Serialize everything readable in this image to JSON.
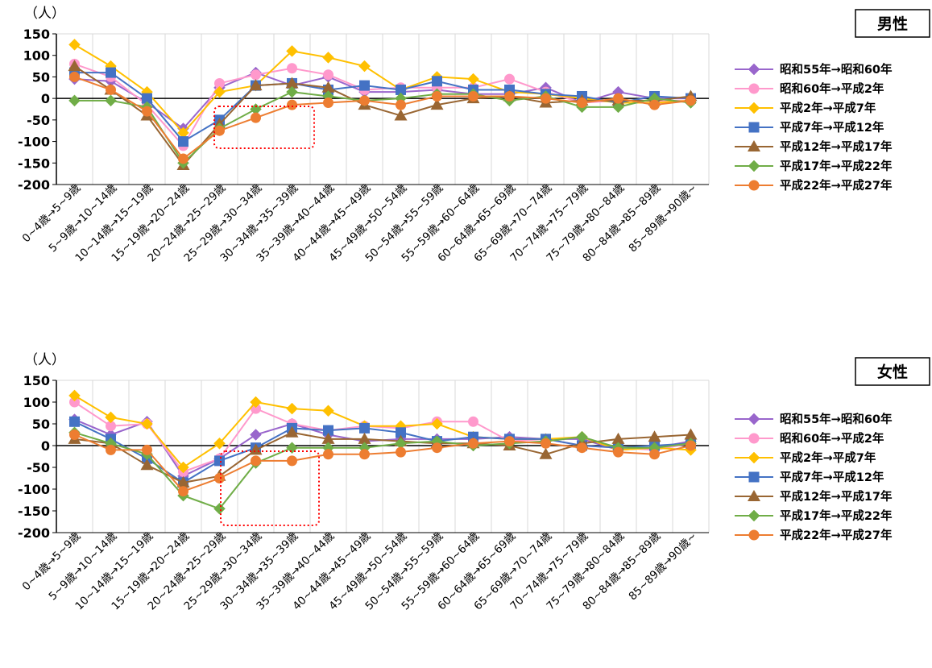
{
  "legend_colors": [
    "#9966cc",
    "#ff99cc",
    "#ffc000",
    "#4472c4",
    "#996633",
    "#70ad47",
    "#ed7d31"
  ],
  "legend_markers": [
    "diamond",
    "circle",
    "diamond",
    "square",
    "triangle",
    "diamond",
    "circle"
  ],
  "chart_data": [
    {
      "type": "line",
      "title": "男性",
      "unit_label": "（人）",
      "ylim": [
        -200,
        150
      ],
      "yticks": [
        150,
        100,
        50,
        0,
        -50,
        -100,
        -150,
        -200
      ],
      "grid": "vertical",
      "legend_position": "right",
      "highlight": "dotted red box around 25~29歳→30~34歳 and 30~34歳→35~39歳",
      "categories": [
        "0~4歳→5~9歳",
        "5~9歳→10~14歳",
        "10~14歳→15~19歳",
        "15~19歳→20~24歳",
        "20~24歳→25~29歳",
        "25~29歳→30~34歳",
        "30~34歳→35~39歳",
        "35~39歳→40~44歳",
        "40~44歳→45~49歳",
        "45~49歳→50~54歳",
        "50~54歳→55~59歳",
        "55~59歳→60~64歳",
        "60~64歳→65~69歳",
        "65~69歳→70~74歳",
        "70~74歳→75~79歳",
        "75~79歳→80~84歳",
        "80~84歳→85~89歳",
        "85~89歳→90歳~"
      ],
      "series": [
        {
          "name": "昭和55年→昭和60年",
          "values": [
            45,
            40,
            -10,
            -70,
            25,
            60,
            30,
            50,
            15,
            15,
            20,
            10,
            10,
            25,
            -10,
            15,
            0,
            0
          ]
        },
        {
          "name": "昭和60年→平成2年",
          "values": [
            80,
            50,
            -15,
            -110,
            35,
            55,
            70,
            55,
            20,
            25,
            25,
            25,
            45,
            15,
            -10,
            -5,
            -5,
            -5
          ]
        },
        {
          "name": "平成2年→平成7年",
          "values": [
            125,
            75,
            15,
            -80,
            15,
            30,
            110,
            95,
            75,
            20,
            50,
            45,
            15,
            10,
            0,
            -10,
            -10,
            -5
          ]
        },
        {
          "name": "平成7年→平成12年",
          "values": [
            60,
            60,
            0,
            -100,
            -50,
            30,
            35,
            20,
            30,
            20,
            40,
            20,
            20,
            10,
            5,
            -10,
            5,
            0
          ]
        },
        {
          "name": "平成12年→平成17年",
          "values": [
            75,
            20,
            -40,
            -155,
            -60,
            30,
            35,
            25,
            -15,
            -40,
            -15,
            0,
            5,
            -10,
            -5,
            -5,
            -5,
            5
          ]
        },
        {
          "name": "平成17年→平成22年",
          "values": [
            -5,
            -5,
            -20,
            -150,
            -70,
            -25,
            15,
            5,
            -5,
            0,
            10,
            10,
            -5,
            5,
            -20,
            -20,
            0,
            -10
          ]
        },
        {
          "name": "平成22年→平成27年",
          "values": [
            50,
            20,
            -30,
            -140,
            -75,
            -45,
            -15,
            -10,
            -5,
            -15,
            5,
            5,
            5,
            0,
            -10,
            0,
            -15,
            -5
          ]
        }
      ]
    },
    {
      "type": "line",
      "title": "女性",
      "unit_label": "（人）",
      "ylim": [
        -200,
        150
      ],
      "yticks": [
        150,
        100,
        50,
        0,
        -50,
        -100,
        -150,
        -200
      ],
      "grid": "vertical",
      "legend_position": "right",
      "highlight": "dotted red box around 25~29歳→30~34歳 and 30~34歳→35~39歳",
      "categories": [
        "0~4歳→5~9歳",
        "5~9歳→10~14歳",
        "10~14歳→15~19歳",
        "15~19歳→20~24歳",
        "20~24歳→25~29歳",
        "25~29歳→30~34歳",
        "30~34歳→35~39歳",
        "35~39歳→40~44歳",
        "40~44歳→45~49歳",
        "45~49歳→50~54歳",
        "50~54歳→55~59歳",
        "55~59歳→60~64歳",
        "60~64歳→65~69歳",
        "65~69歳→70~74歳",
        "70~74歳→75~79歳",
        "75~79歳→80~84歳",
        "80~84歳→85~89歳",
        "85~89歳→90歳~"
      ],
      "series": [
        {
          "name": "昭和55年→昭和60年",
          "values": [
            60,
            25,
            55,
            -70,
            -30,
            25,
            50,
            25,
            10,
            15,
            15,
            15,
            20,
            15,
            15,
            -10,
            -5,
            10
          ]
        },
        {
          "name": "昭和60年→平成2年",
          "values": [
            100,
            45,
            50,
            -60,
            -30,
            85,
            50,
            35,
            45,
            40,
            55,
            55,
            10,
            15,
            0,
            -5,
            -10,
            5
          ]
        },
        {
          "name": "平成2年→平成7年",
          "values": [
            115,
            65,
            50,
            -50,
            5,
            100,
            85,
            80,
            45,
            45,
            50,
            20,
            15,
            15,
            20,
            -10,
            -5,
            -10
          ]
        },
        {
          "name": "平成7年→平成12年",
          "values": [
            55,
            15,
            -30,
            -85,
            -35,
            -5,
            40,
            35,
            40,
            30,
            10,
            20,
            15,
            15,
            0,
            -5,
            0,
            5
          ]
        },
        {
          "name": "平成12年→平成17年",
          "values": [
            15,
            5,
            -45,
            -85,
            -70,
            -10,
            30,
            15,
            15,
            10,
            5,
            5,
            0,
            -20,
            5,
            15,
            20,
            25
          ]
        },
        {
          "name": "平成17年→平成22年",
          "values": [
            30,
            5,
            -20,
            -115,
            -145,
            -40,
            -5,
            -5,
            -5,
            5,
            10,
            0,
            5,
            10,
            20,
            -5,
            -5,
            5
          ]
        },
        {
          "name": "平成22年→平成27年",
          "values": [
            25,
            -10,
            -10,
            -105,
            -75,
            -35,
            -35,
            -20,
            -20,
            -15,
            -5,
            5,
            10,
            5,
            -5,
            -15,
            -20,
            0
          ]
        }
      ]
    }
  ]
}
